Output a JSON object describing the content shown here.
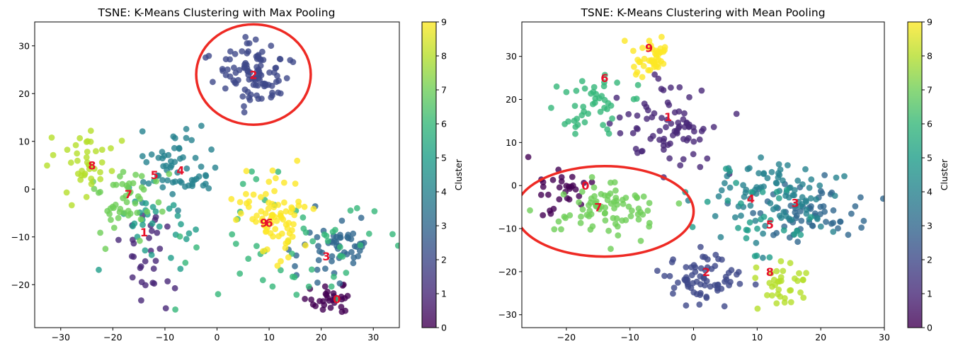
{
  "chart_data": [
    {
      "type": "scatter",
      "title": "TSNE: K-Means Clustering with Max Pooling",
      "xlim": [
        -35,
        35
      ],
      "ylim": [
        -29,
        35
      ],
      "xticks": [
        -30,
        -20,
        -10,
        0,
        10,
        20,
        30
      ],
      "yticks": [
        -20,
        -10,
        0,
        10,
        20,
        30
      ],
      "colorbar": {
        "label": "Cluster",
        "range": [
          0,
          9
        ],
        "ticks": [
          "0",
          "1",
          "2",
          "3",
          "4",
          "5",
          "6",
          "7",
          "8",
          "9"
        ]
      },
      "clusters": [
        {
          "id": 0,
          "label": "0",
          "center": [
            22,
            -23
          ],
          "spread": [
            3.2,
            2.0
          ],
          "count": 30,
          "label_pos": [
            23,
            -23
          ]
        },
        {
          "id": 1,
          "label": "1",
          "center": [
            -13,
            -14
          ],
          "spread": [
            4.0,
            5.5
          ],
          "count": 30,
          "label_pos": [
            -14,
            -9
          ]
        },
        {
          "id": 2,
          "label": "2",
          "center": [
            7,
            24
          ],
          "spread": [
            5.0,
            4.5
          ],
          "count": 100,
          "label_pos": [
            7,
            24
          ]
        },
        {
          "id": 3,
          "label": "3",
          "center": [
            22,
            -13
          ],
          "spread": [
            5.0,
            5.0
          ],
          "count": 55,
          "label_pos": [
            21,
            -14
          ]
        },
        {
          "id": 4,
          "label": "4",
          "center": [
            -8,
            5
          ],
          "spread": [
            4.5,
            5.0
          ],
          "count": 60,
          "label_pos": [
            -7,
            4
          ]
        },
        {
          "id": 5,
          "label": "5",
          "center": [
            -12,
            -8
          ],
          "spread": [
            6.0,
            6.0
          ],
          "count": 30,
          "label_pos": [
            -12,
            3
          ]
        },
        {
          "id": 6,
          "label": "6",
          "center": [
            16,
            -12
          ],
          "spread": [
            14.0,
            10.0
          ],
          "count": 55,
          "label_pos": [
            10,
            -7
          ]
        },
        {
          "id": 7,
          "label": "7",
          "center": [
            -18,
            -3
          ],
          "spread": [
            4.5,
            5.0
          ],
          "count": 50,
          "label_pos": [
            -17,
            -1
          ]
        },
        {
          "id": 8,
          "label": "8",
          "center": [
            -26,
            5
          ],
          "spread": [
            4.0,
            5.0
          ],
          "count": 40,
          "label_pos": [
            -24,
            5
          ]
        },
        {
          "id": 9,
          "label": "9",
          "center": [
            11,
            -6
          ],
          "spread": [
            5.5,
            6.0
          ],
          "count": 80,
          "label_pos": [
            9,
            -7
          ]
        }
      ],
      "annotation": {
        "shape": "ellipse",
        "color": "#ee2a24",
        "center": [
          7,
          24
        ],
        "radii": [
          11,
          10.5
        ]
      }
    },
    {
      "type": "scatter",
      "title": "TSNE: K-Means Clustering with Mean Pooling",
      "xlim": [
        -27,
        30
      ],
      "ylim": [
        -33,
        38
      ],
      "xticks": [
        -20,
        -10,
        0,
        10,
        20,
        30
      ],
      "yticks": [
        -30,
        -20,
        -10,
        0,
        10,
        20,
        30
      ],
      "colorbar": {
        "label": "Cluster",
        "range": [
          0,
          9
        ],
        "ticks": [
          "0",
          "1",
          "2",
          "3",
          "4",
          "5",
          "6",
          "7",
          "8",
          "9"
        ]
      },
      "clusters": [
        {
          "id": 0,
          "label": "0",
          "center": [
            -21,
            -2
          ],
          "spread": [
            3.0,
            4.0
          ],
          "count": 30,
          "label_pos": [
            -17,
            0
          ]
        },
        {
          "id": 1,
          "label": "1",
          "center": [
            -4,
            13
          ],
          "spread": [
            5.0,
            6.5
          ],
          "count": 80,
          "label_pos": [
            -4,
            16
          ]
        },
        {
          "id": 2,
          "label": "2",
          "center": [
            1,
            -22
          ],
          "spread": [
            4.5,
            4.0
          ],
          "count": 70,
          "label_pos": [
            2,
            -20
          ]
        },
        {
          "id": 3,
          "label": "3",
          "center": [
            19,
            -7
          ],
          "spread": [
            5.0,
            4.5
          ],
          "count": 60,
          "label_pos": [
            16,
            -4
          ]
        },
        {
          "id": 4,
          "label": "4",
          "center": [
            12,
            -2
          ],
          "spread": [
            6.0,
            5.5
          ],
          "count": 90,
          "label_pos": [
            9,
            -3
          ]
        },
        {
          "id": 5,
          "label": "5",
          "center": [
            10,
            -8
          ],
          "spread": [
            7.0,
            7.0
          ],
          "count": 30,
          "label_pos": [
            12,
            -9
          ]
        },
        {
          "id": 6,
          "label": "6",
          "center": [
            -17,
            19
          ],
          "spread": [
            5.0,
            5.0
          ],
          "count": 45,
          "label_pos": [
            -14,
            25
          ]
        },
        {
          "id": 7,
          "label": "7",
          "center": [
            -14,
            -6
          ],
          "spread": [
            4.8,
            3.8
          ],
          "count": 80,
          "label_pos": [
            -15,
            -5
          ]
        },
        {
          "id": 8,
          "label": "8",
          "center": [
            14,
            -23
          ],
          "spread": [
            2.8,
            4.5
          ],
          "count": 35,
          "label_pos": [
            12,
            -20
          ]
        },
        {
          "id": 9,
          "label": "9",
          "center": [
            -7,
            30
          ],
          "spread": [
            2.0,
            3.5
          ],
          "count": 45,
          "label_pos": [
            -7,
            32
          ]
        }
      ],
      "annotation": {
        "shape": "ellipse",
        "color": "#ee2a24",
        "center": [
          -14,
          -6
        ],
        "radii": [
          14,
          10.5
        ]
      }
    }
  ]
}
